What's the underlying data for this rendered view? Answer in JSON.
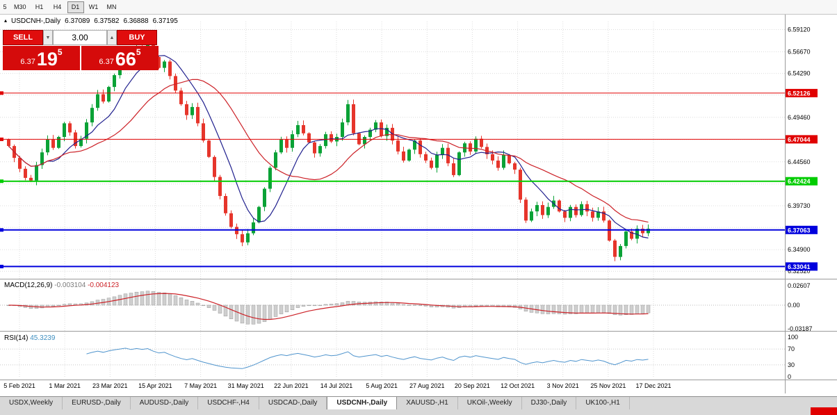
{
  "toolbar": {
    "timeframes": [
      "5",
      "M30",
      "H1",
      "H4",
      "D1",
      "W1",
      "MN"
    ],
    "active": "D1"
  },
  "icons": {
    "panel_collapse": "▴",
    "spinner_up": "▲",
    "spinner_down": "▼"
  },
  "header": {
    "symbol": "USDCNH-,Daily",
    "open": "6.37089",
    "high": "6.37582",
    "low": "6.36888",
    "close": "6.37195"
  },
  "trade": {
    "sell_label": "SELL",
    "buy_label": "BUY",
    "volume": "3.00",
    "bid_prefix": "6.37",
    "bid_big": "19",
    "bid_sup": "5",
    "ask_prefix": "6.37",
    "ask_big": "66",
    "ask_sup": "5"
  },
  "macd": {
    "label": "MACD(12,26,9)",
    "value_main": "-0.003104",
    "value_signal": "-0.004123"
  },
  "rsi": {
    "label": "RSI(14)",
    "value": "45.3239"
  },
  "tabs": {
    "items": [
      "USDX,Weekly",
      "EURUSD-,Daily",
      "AUDUSD-,Daily",
      "USDCHF-,H4",
      "USDCAD-,Daily",
      "USDCNH-,Daily",
      "XAUUSD-,H1",
      "UKOil-,Weekly",
      "DJ30-,Daily",
      "UK100-,H1"
    ],
    "active": "USDCNH-,Daily"
  },
  "chart_data": {
    "type": "candlestick",
    "symbol": "USDCNH-",
    "timeframe": "Daily",
    "ylim": [
      6.32,
      6.6
    ],
    "first_open": 6.47,
    "closes": [
      6.463,
      6.45,
      6.438,
      6.428,
      6.425,
      6.442,
      6.456,
      6.47,
      6.461,
      6.473,
      6.488,
      6.478,
      6.463,
      6.471,
      6.489,
      6.505,
      6.52,
      6.512,
      6.528,
      6.541,
      6.553,
      6.565,
      6.557,
      6.571,
      6.566,
      6.576,
      6.561,
      6.549,
      6.556,
      6.54,
      6.524,
      6.509,
      6.497,
      6.506,
      6.488,
      6.469,
      6.451,
      6.429,
      6.408,
      6.389,
      6.374,
      6.366,
      6.357,
      6.367,
      6.379,
      6.396,
      6.416,
      6.439,
      6.456,
      6.47,
      6.461,
      6.476,
      6.486,
      6.477,
      6.467,
      6.455,
      6.463,
      6.476,
      6.468,
      6.473,
      6.489,
      6.509,
      6.477,
      6.465,
      6.473,
      6.481,
      6.489,
      6.474,
      6.483,
      6.469,
      6.457,
      6.447,
      6.459,
      6.469,
      6.454,
      6.447,
      6.439,
      6.453,
      6.461,
      6.444,
      6.431,
      6.456,
      6.466,
      6.457,
      6.471,
      6.462,
      6.454,
      6.447,
      6.439,
      6.453,
      6.444,
      6.437,
      6.404,
      6.381,
      6.391,
      6.398,
      6.387,
      6.396,
      6.403,
      6.391,
      6.384,
      6.396,
      6.387,
      6.399,
      6.391,
      6.384,
      6.391,
      6.381,
      6.359,
      6.341,
      6.353,
      6.369,
      6.361,
      6.372,
      6.367,
      6.372
    ],
    "ma_periods": [
      8,
      20
    ],
    "hlines": [
      {
        "price": 6.52126,
        "text": "6.52126",
        "color": "#e00000",
        "width": 1
      },
      {
        "price": 6.47044,
        "text": "6.47044",
        "color": "#e00000",
        "width": 1
      },
      {
        "price": 6.42424,
        "text": "6.42424",
        "color": "#00cc00",
        "width": 2
      },
      {
        "price": 6.37063,
        "text": "6.37063",
        "color": "#0000dd",
        "width": 2
      },
      {
        "price": 6.33041,
        "text": "6.33041",
        "color": "#0000dd",
        "width": 2
      }
    ],
    "grid_prices": [
      6.5912,
      6.5667,
      6.5429,
      6.5191,
      6.4946,
      6.4701,
      6.4456,
      6.4211,
      6.3973,
      6.3735,
      6.349,
      6.3252
    ],
    "axis_labels": [
      {
        "price": 6.5912,
        "text": "6.59120"
      },
      {
        "price": 6.5667,
        "text": "6.56670"
      },
      {
        "price": 6.5429,
        "text": "6.54290"
      },
      {
        "price": 6.4946,
        "text": "6.49460"
      },
      {
        "price": 6.4456,
        "text": "6.44560"
      },
      {
        "price": 6.3973,
        "text": "6.39730"
      },
      {
        "price": 6.349,
        "text": "6.34900"
      },
      {
        "price": 6.3252,
        "text": "6.32520"
      }
    ],
    "dates": [
      "5 Feb 2021",
      "1 Mar 2021",
      "23 Mar 2021",
      "15 Apr 2021",
      "7 May 2021",
      "31 May 2021",
      "22 Jun 2021",
      "14 Jul 2021",
      "5 Aug 2021",
      "27 Aug 2021",
      "20 Sep 2021",
      "12 Oct 2021",
      "3 Nov 2021",
      "25 Nov 2021",
      "17 Dec 2021"
    ],
    "macd_axis": [
      {
        "text": "0.02607",
        "value": 0.02607
      },
      {
        "text": "0.00",
        "value": 0
      },
      {
        "text": "-0.03187",
        "value": -0.03187
      }
    ],
    "rsi_axis": [
      {
        "text": "100",
        "value": 100
      },
      {
        "text": "70",
        "value": 70
      },
      {
        "text": "30",
        "value": 30
      },
      {
        "text": "0",
        "value": 0
      }
    ],
    "rsi_levels": [
      70,
      30
    ],
    "colors": {
      "up": "#0aa236",
      "down": "#e6352b",
      "ma_fast": "#20208e",
      "ma_slow": "#cc2127",
      "macd_hist_fill": "#cfcfcf",
      "macd_hist_stroke": "#9a9a9a",
      "macd_signal": "#cc2127",
      "rsi_line": "#4f94cd",
      "grid": "#dcdcdc"
    }
  }
}
